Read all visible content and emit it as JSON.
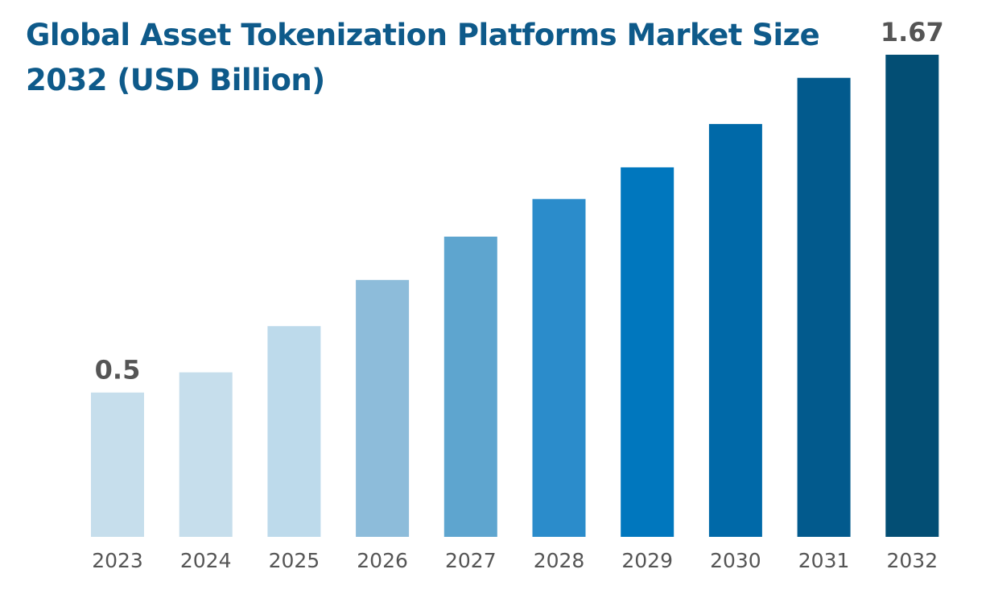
{
  "chart_data": {
    "type": "bar",
    "title_lines": [
      "Global Asset Tokenization Platforms Market Size",
      "2032 (USD Billion)"
    ],
    "categories": [
      "2023",
      "2024",
      "2025",
      "2026",
      "2027",
      "2028",
      "2029",
      "2030",
      "2031",
      "2032"
    ],
    "values": [
      0.5,
      0.57,
      0.73,
      0.89,
      1.04,
      1.17,
      1.28,
      1.43,
      1.59,
      1.67
    ],
    "colors": [
      "#c6deec",
      "#c6deec",
      "#bddaeb",
      "#8dbcda",
      "#5ea5cf",
      "#2b8ccb",
      "#0077be",
      "#0069a8",
      "#025a8d",
      "#034e74"
    ],
    "data_labels": [
      {
        "index": 0,
        "text": "0.5"
      },
      {
        "index": 9,
        "text": "1.67"
      }
    ],
    "xlabel": "",
    "ylabel": "",
    "ylim": [
      0,
      1.67
    ],
    "grid": false,
    "legend": "none"
  }
}
